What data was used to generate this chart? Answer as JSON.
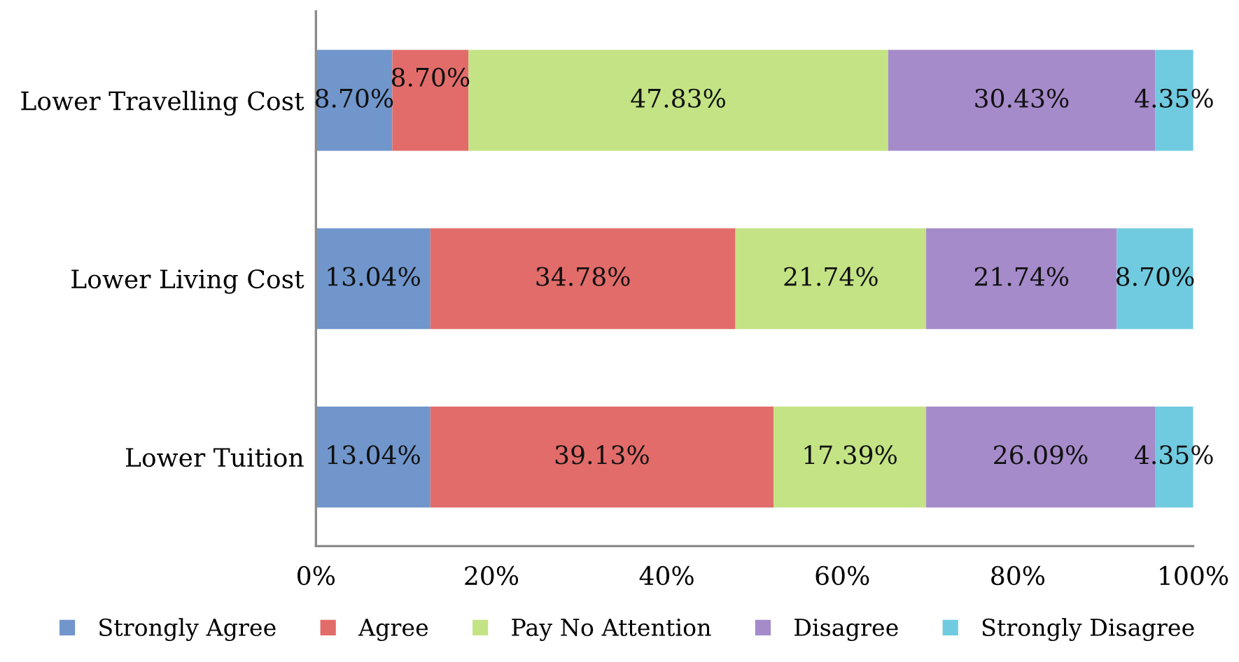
{
  "chart_data": {
    "type": "bar",
    "orientation": "horizontal",
    "stacked": true,
    "categories": [
      "Lower Travelling Cost",
      "Lower Living Cost",
      "Lower Tuition"
    ],
    "series": [
      {
        "name": "Strongly Agree",
        "color": "#7096cc",
        "values": [
          8.7,
          13.04,
          13.04
        ],
        "value_labels": [
          "8.70%",
          "13.04%",
          "13.04%"
        ]
      },
      {
        "name": "Agree",
        "color": "#e26c6a",
        "values": [
          8.7,
          34.78,
          39.13
        ],
        "value_labels": [
          "8.70%",
          "34.78%",
          "39.13%"
        ]
      },
      {
        "name": "Pay No Attention",
        "color": "#c4e384",
        "values": [
          47.83,
          21.74,
          17.39
        ],
        "value_labels": [
          "47.83%",
          "21.74%",
          "17.39%"
        ]
      },
      {
        "name": "Disagree",
        "color": "#a68bcb",
        "values": [
          30.43,
          21.74,
          26.09
        ],
        "value_labels": [
          "30.43%",
          "21.74%",
          "26.09%"
        ]
      },
      {
        "name": "Strongly Disagree",
        "color": "#70cbe0",
        "values": [
          4.35,
          8.7,
          4.35
        ],
        "value_labels": [
          "4.35%",
          "8.70%",
          "4.35%"
        ]
      }
    ],
    "xlim": [
      0,
      100
    ],
    "xticks": [
      {
        "value": 0,
        "label": "0%"
      },
      {
        "value": 20,
        "label": "20%"
      },
      {
        "value": 40,
        "label": "40%"
      },
      {
        "value": 60,
        "label": "60%"
      },
      {
        "value": 80,
        "label": "80%"
      },
      {
        "value": 100,
        "label": "100%"
      }
    ],
    "legend": "bottom"
  }
}
